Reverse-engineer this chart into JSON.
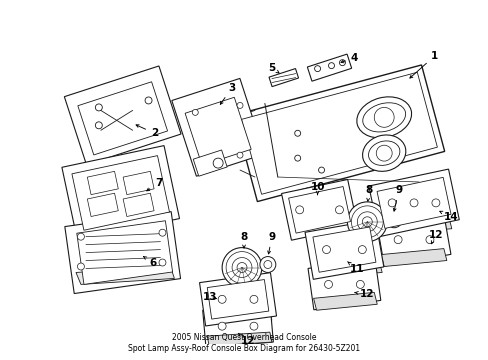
{
  "background_color": "#ffffff",
  "line_color": "#1a1a1a",
  "figsize": [
    4.89,
    3.6
  ],
  "dpi": 100,
  "footer_text": "2005 Nissan Quest Overhead Console\nSpot Lamp Assy-Roof Console Box Diagram for 26430-5Z201",
  "label_font_size": 7.5,
  "footer_font_size": 5.5
}
